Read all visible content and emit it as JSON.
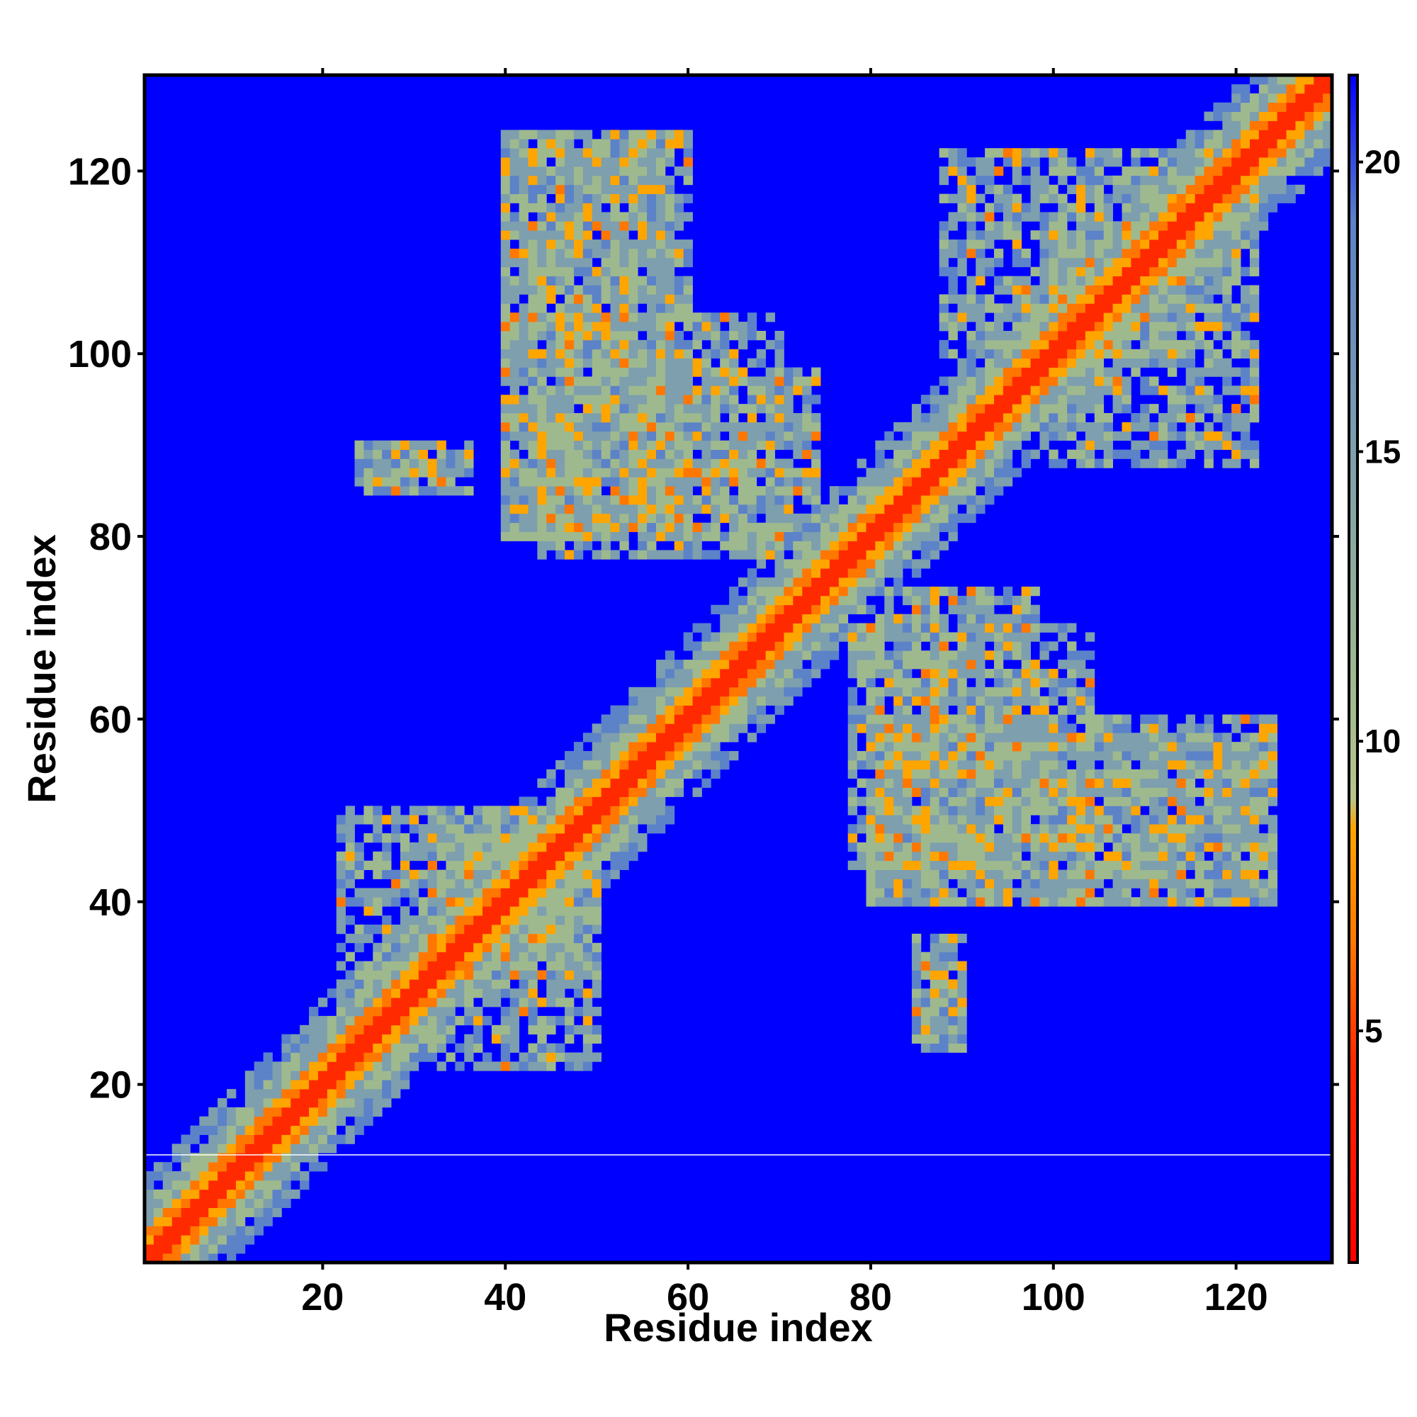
{
  "chart_data": {
    "type": "heatmap",
    "title": "",
    "xlabel": "Residue index",
    "ylabel": "Residue index",
    "xlim": [
      1,
      130
    ],
    "ylim": [
      1,
      130
    ],
    "x_ticks": [
      20,
      40,
      60,
      80,
      100,
      120
    ],
    "y_ticks": [
      20,
      40,
      60,
      80,
      100,
      120
    ],
    "grid": false,
    "legend": "colorbar-right",
    "colorbar": {
      "ticks": [
        5,
        10,
        15,
        20
      ],
      "range": [
        1,
        21.5
      ],
      "stops": [
        {
          "value": 1,
          "color": "#ff0000"
        },
        {
          "value": 4.5,
          "color": "#ff2a00"
        },
        {
          "value": 6.5,
          "color": "#ff7700"
        },
        {
          "value": 8.5,
          "color": "#ffa500"
        },
        {
          "value": 9,
          "color": "#b8c48a"
        },
        {
          "value": 11,
          "color": "#9fb98e"
        },
        {
          "value": 15,
          "color": "#7d9fae"
        },
        {
          "value": 19,
          "color": "#5c82c8"
        },
        {
          "value": 21.5,
          "color": "#0000ff"
        }
      ]
    },
    "background_value": 21.5,
    "diagonal_band": {
      "core": [
        1,
        130
      ],
      "note": "distance increases with |i-j|"
    },
    "contact_regions": [
      {
        "x": [
          40,
          60
        ],
        "y": [
          80,
          124
        ],
        "value": 13
      },
      {
        "x": [
          44,
          74
        ],
        "y": [
          78,
          98
        ],
        "value": 13
      },
      {
        "x": [
          80,
          104
        ],
        "y": [
          40,
          70
        ],
        "value": 13
      },
      {
        "x": [
          102,
          124
        ],
        "y": [
          40,
          58
        ],
        "value": 13
      },
      {
        "x": [
          88,
          118
        ],
        "y": [
          100,
          122
        ],
        "value": 13
      },
      {
        "x": [
          32,
          50
        ],
        "y": [
          22,
          50
        ],
        "value": 13
      },
      {
        "x": [
          24,
          34
        ],
        "y": [
          86,
          90
        ],
        "value": 13
      },
      {
        "x": [
          85,
          90
        ],
        "y": [
          25,
          36
        ],
        "value": 13
      }
    ]
  }
}
